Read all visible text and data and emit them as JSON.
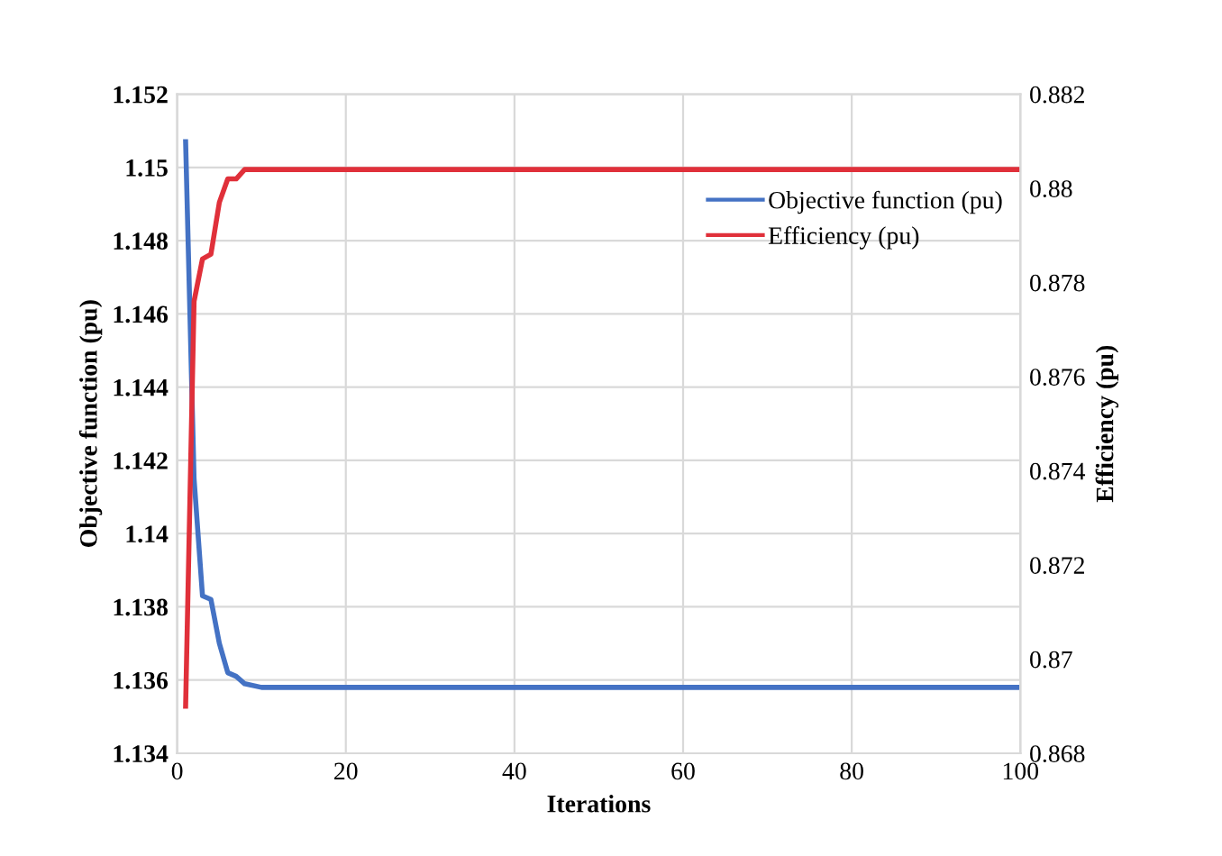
{
  "chart_data": {
    "type": "line",
    "xlabel": "Iterations",
    "ylabel": "Objective function (pu)",
    "y2label": "Efficiency (pu)",
    "xlim": [
      0,
      100
    ],
    "xticks": [
      0,
      20,
      40,
      60,
      80,
      100
    ],
    "ylim": [
      1.134,
      1.152
    ],
    "yticks": [
      1.134,
      1.136,
      1.138,
      1.14,
      1.142,
      1.144,
      1.146,
      1.148,
      1.15,
      1.152
    ],
    "y2lim": [
      0.868,
      0.882
    ],
    "y2ticks": [
      0.868,
      0.87,
      0.872,
      0.874,
      0.876,
      0.878,
      0.88,
      0.882
    ],
    "grid": true,
    "legend": "top right",
    "marker": "none",
    "line_style": "solid",
    "series": [
      {
        "name": "Objective function (pu)",
        "color": "#4472c4",
        "x": [
          1,
          2,
          3,
          4,
          5,
          6,
          7,
          8,
          10,
          15,
          100
        ],
        "values": [
          1.1507,
          1.1415,
          1.1383,
          1.1382,
          1.137,
          1.1362,
          1.1361,
          1.1359,
          1.1358,
          1.1358,
          1.1358
        ]
      },
      {
        "name": "Efficiency (pu)",
        "color": "#e0303a",
        "axis": "y2",
        "x": [
          1,
          2,
          3,
          4,
          5,
          6,
          7,
          8,
          10,
          15,
          100
        ],
        "values": [
          0.869,
          0.8776,
          0.8785,
          0.8786,
          0.8797,
          0.8802,
          0.8802,
          0.8804,
          0.8804,
          0.8804,
          0.8804
        ]
      }
    ]
  }
}
